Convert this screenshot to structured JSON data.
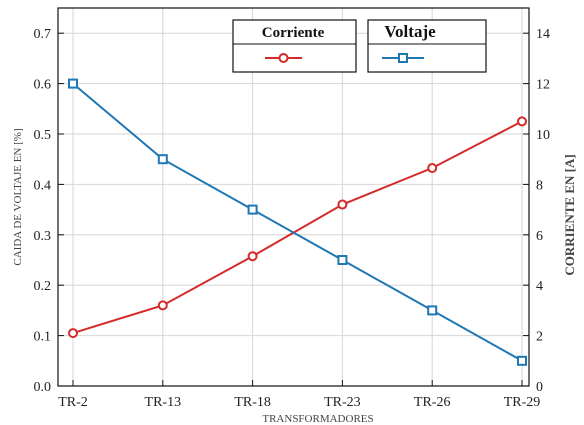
{
  "chart_data": {
    "type": "line",
    "categories": [
      "TR-2",
      "TR-13",
      "TR-18",
      "TR-23",
      "TR-26",
      "TR-29"
    ],
    "xlabel": "TRANSFORMADORES",
    "ylabel_left": "CAIDA DE VOLTAJE EN [%]",
    "ylabel_right": "CORRIENTE EN [A]",
    "ylim_left": [
      0,
      0.75
    ],
    "ylim_right": [
      0,
      15
    ],
    "yticks_left": [
      "0.0",
      "0.1",
      "0.2",
      "0.3",
      "0.4",
      "0.5",
      "0.6",
      "0.7"
    ],
    "yticks_right": [
      "0",
      "2",
      "4",
      "6",
      "8",
      "10",
      "12",
      "14"
    ],
    "grid": true,
    "legend_placement": "top-center",
    "series": [
      {
        "name": "Corriente",
        "axis": "right",
        "color": "#d42a2a",
        "marker": "circle",
        "values": [
          2.1,
          3.2,
          5.15,
          7.2,
          8.65,
          10.5
        ]
      },
      {
        "name": "Voltaje",
        "axis": "left",
        "color": "#1f77b4",
        "marker": "square",
        "values": [
          0.6,
          0.45,
          0.35,
          0.25,
          0.15,
          0.05
        ]
      }
    ]
  }
}
